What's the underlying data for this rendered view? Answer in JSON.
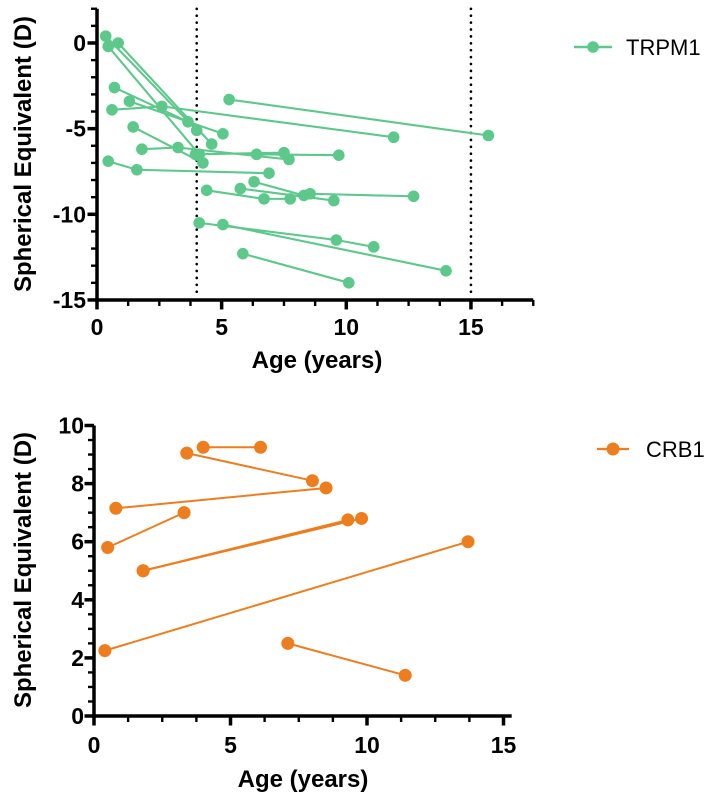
{
  "figure": {
    "panels": [
      {
        "gene": "TRPM1",
        "position": "top"
      },
      {
        "gene": "CRB1",
        "position": "bottom"
      }
    ]
  },
  "colors": {
    "trpm1_green": "#5CC98B",
    "crb1_orange": "#EE7D1E",
    "axis_black": "#000000"
  },
  "chart_data": [
    {
      "id": "trpm1",
      "type": "line",
      "legend_label": "TRPM1",
      "color": "#5CC98B",
      "xlabel": "Age (years)",
      "ylabel": "Spherical Equivalent (D)",
      "x_range": [
        0,
        17.5
      ],
      "y_range": [
        -15,
        2
      ],
      "x_major_ticks": [
        0,
        5,
        10,
        15
      ],
      "x_minor_step": 1.25,
      "y_major_ticks": [
        0,
        -5,
        -10,
        -15
      ],
      "y_minor_step": 1,
      "reference_lines_x": [
        4,
        15
      ],
      "marker_radius": 5.8,
      "series": [
        {
          "points": [
            [
              0.35,
              0.4
            ],
            [
              4.0,
              -5.1
            ]
          ]
        },
        {
          "points": [
            [
              0.45,
              -0.2
            ],
            [
              4.1,
              -6.5
            ]
          ]
        },
        {
          "points": [
            [
              0.85,
              0.0
            ],
            [
              4.6,
              -5.9
            ]
          ]
        },
        {
          "points": [
            [
              0.7,
              -2.6
            ],
            [
              3.65,
              -4.6
            ]
          ]
        },
        {
          "points": [
            [
              1.3,
              -3.4
            ],
            [
              5.05,
              -5.3
            ]
          ]
        },
        {
          "points": [
            [
              0.6,
              -3.9
            ],
            [
              2.6,
              -3.7
            ],
            [
              11.9,
              -5.5
            ]
          ]
        },
        {
          "points": [
            [
              5.3,
              -3.3
            ],
            [
              15.7,
              -5.4
            ]
          ]
        },
        {
          "points": [
            [
              1.45,
              -4.9
            ],
            [
              4.25,
              -7.0
            ]
          ]
        },
        {
          "points": [
            [
              1.8,
              -6.2
            ],
            [
              3.25,
              -6.1
            ],
            [
              7.7,
              -6.8
            ]
          ]
        },
        {
          "points": [
            [
              3.95,
              -6.5
            ],
            [
              7.5,
              -6.4
            ]
          ]
        },
        {
          "points": [
            [
              6.4,
              -6.5
            ],
            [
              9.7,
              -6.55
            ]
          ]
        },
        {
          "points": [
            [
              0.45,
              -6.9
            ],
            [
              1.6,
              -7.4
            ],
            [
              6.9,
              -7.6
            ]
          ]
        },
        {
          "points": [
            [
              4.4,
              -8.6
            ],
            [
              6.7,
              -9.1
            ],
            [
              7.75,
              -9.1
            ]
          ]
        },
        {
          "points": [
            [
              5.75,
              -8.5
            ],
            [
              9.5,
              -9.2
            ]
          ]
        },
        {
          "points": [
            [
              6.3,
              -8.1
            ],
            [
              8.3,
              -8.9
            ]
          ]
        },
        {
          "points": [
            [
              8.55,
              -8.8
            ],
            [
              12.7,
              -8.95
            ]
          ]
        },
        {
          "points": [
            [
              4.1,
              -10.5
            ],
            [
              9.6,
              -11.5
            ],
            [
              11.1,
              -11.9
            ]
          ]
        },
        {
          "points": [
            [
              5.05,
              -10.6
            ],
            [
              14.0,
              -13.3
            ]
          ]
        },
        {
          "points": [
            [
              5.85,
              -12.3
            ],
            [
              10.1,
              -14.0
            ]
          ]
        }
      ]
    },
    {
      "id": "crb1",
      "type": "line",
      "legend_label": "CRB1",
      "color": "#EE7D1E",
      "xlabel": "Age (years)",
      "ylabel": "Spherical Equivalent (D)",
      "x_range": [
        0,
        15.3
      ],
      "y_range": [
        0,
        10
      ],
      "x_major_ticks": [
        0,
        5,
        10,
        15
      ],
      "x_minor_step": 1.25,
      "y_major_ticks": [
        0,
        2,
        4,
        6,
        8,
        10
      ],
      "y_minor_step": 0.5,
      "reference_lines_x": [],
      "marker_radius": 6.5,
      "series": [
        {
          "points": [
            [
              3.4,
              9.05
            ],
            [
              8.0,
              8.1
            ]
          ]
        },
        {
          "points": [
            [
              4.0,
              9.25
            ],
            [
              6.1,
              9.25
            ]
          ]
        },
        {
          "points": [
            [
              0.8,
              7.15
            ],
            [
              8.5,
              7.85
            ]
          ]
        },
        {
          "points": [
            [
              0.5,
              5.8
            ],
            [
              3.3,
              7.0
            ]
          ]
        },
        {
          "points": [
            [
              1.8,
              5.0
            ],
            [
              9.3,
              6.75
            ]
          ]
        },
        {
          "points": [
            [
              1.8,
              5.0
            ],
            [
              9.8,
              6.8
            ]
          ]
        },
        {
          "points": [
            [
              0.4,
              2.25
            ],
            [
              13.7,
              6.0
            ]
          ]
        },
        {
          "points": [
            [
              7.1,
              2.5
            ],
            [
              11.4,
              1.4
            ]
          ]
        }
      ]
    }
  ]
}
